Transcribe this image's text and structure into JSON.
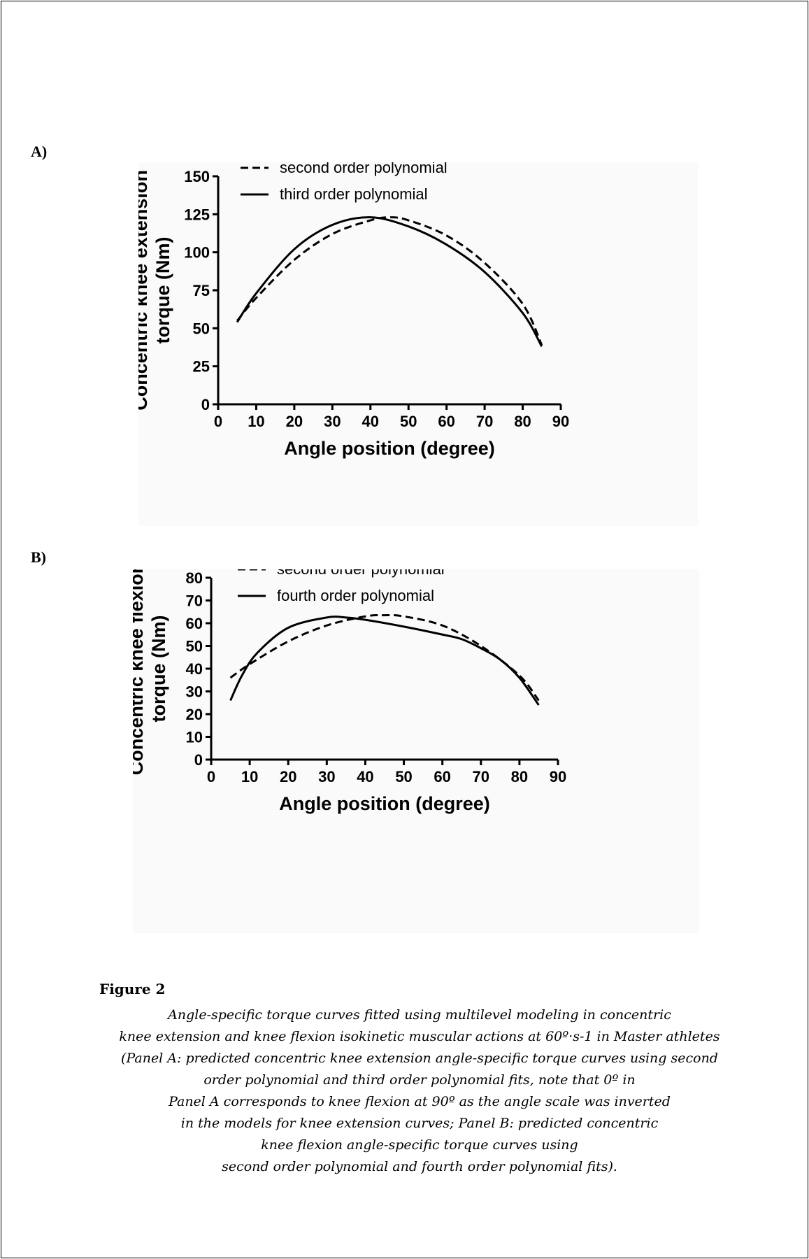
{
  "panels": [
    {
      "label": "A)",
      "chart_data": {
        "type": "line",
        "title": "",
        "xlabel": "Angle position (degree)",
        "ylabel_lines": [
          "Concentric knee extension",
          "torque (Nm)"
        ],
        "xlim": [
          0,
          90
        ],
        "ylim": [
          0,
          150
        ],
        "xticks": [
          0,
          10,
          20,
          30,
          40,
          50,
          60,
          70,
          80,
          90
        ],
        "yticks": [
          0,
          25,
          50,
          75,
          100,
          125,
          150
        ],
        "grid": false,
        "legend_position": "top-left",
        "series": [
          {
            "name": "second order polynomial",
            "dash": "dashed",
            "x": [
              5,
              10,
              20,
              30,
              40,
              45,
              50,
              60,
              70,
              80,
              85
            ],
            "y": [
              55,
              70,
              95,
              112,
              121,
              123,
              121,
              111,
              93,
              66,
              39
            ]
          },
          {
            "name": "third order polynomial",
            "dash": "solid",
            "x": [
              5,
              10,
              20,
              30,
              40,
              50,
              60,
              70,
              80,
              85
            ],
            "y": [
              54,
              73,
              102,
              118,
              123,
              117,
              105,
              87,
              60,
              38
            ]
          }
        ]
      }
    },
    {
      "label": "B)",
      "chart_data": {
        "type": "line",
        "title": "",
        "xlabel": "Angle position (degree)",
        "ylabel_lines": [
          "Concentric knee flexion",
          "torque (Nm)"
        ],
        "xlim": [
          0,
          90
        ],
        "ylim": [
          0,
          80
        ],
        "xticks": [
          0,
          10,
          20,
          30,
          40,
          50,
          60,
          70,
          80,
          90
        ],
        "yticks": [
          0,
          10,
          20,
          30,
          40,
          50,
          60,
          70,
          80
        ],
        "grid": false,
        "legend_position": "top-left",
        "series": [
          {
            "name": "second order polynomial",
            "dash": "dashed",
            "x": [
              5,
              10,
              20,
              30,
              40,
              45,
              50,
              60,
              70,
              80,
              85
            ],
            "y": [
              36,
              42,
              52,
              59,
              63,
              63.5,
              63,
              59,
              50,
              37,
              26
            ]
          },
          {
            "name": "fourth order polynomial",
            "dash": "solid",
            "x": [
              5,
              8,
              12,
              20,
              30,
              35,
              40,
              50,
              60,
              65,
              70,
              75,
              80,
              85
            ],
            "y": [
              26,
              37,
              47,
              58,
              62.5,
              62.5,
              61.5,
              58.5,
              55,
              53,
              49,
              44,
              36,
              24
            ]
          }
        ]
      }
    }
  ],
  "caption": {
    "title": "Figure 2",
    "lines": [
      "Angle-specific torque curves fitted using multilevel modeling in concentric",
      "knee extension and knee flexion isokinetic muscular actions at 60º·s-1 in Master athletes",
      "(Panel A: predicted concentric knee extension angle-specific torque curves using second",
      "order polynomial and third order polynomial fits, note that 0º in",
      "Panel A corresponds to knee flexion at 90º as the angle scale was inverted",
      "in the models for knee extension curves; Panel B: predicted concentric",
      "knee flexion angle-specific torque curves using",
      "second order polynomial and fourth order polynomial fits)."
    ]
  }
}
